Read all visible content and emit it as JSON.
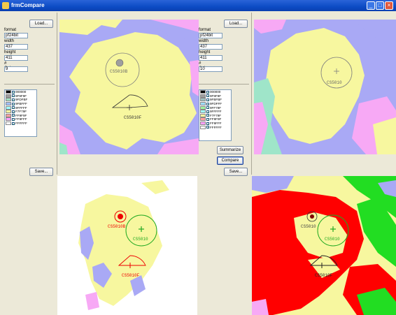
{
  "window": {
    "title": "frmCompare"
  },
  "left_panel": {
    "load_label": "Load...",
    "format_label": "format",
    "format_value": "pf24bit",
    "width_label": "width",
    "width_value": "437",
    "height_label": "height",
    "height_value": "411",
    "colours_label": "# Colours",
    "colours_value": "9",
    "save_label": "Save...",
    "legend": [
      {
        "hex": "000000",
        "color": "#000000"
      },
      {
        "hex": "9F9F9F",
        "color": "#9F9F9F"
      },
      {
        "hex": "9FDFBF",
        "color": "#9FDFBF"
      },
      {
        "hex": "9FBFFF",
        "color": "#9FBFFF"
      },
      {
        "hex": "9FFFFF",
        "color": "#9FFFFF"
      },
      {
        "hex": "F7F79F",
        "color": "#F7F79F"
      },
      {
        "hex": "FF9F9F",
        "color": "#FF9F9F"
      },
      {
        "hex": "FF9FFF",
        "color": "#FF9FFF"
      },
      {
        "hex": "FFFFFF",
        "color": "#FFFFFF"
      }
    ]
  },
  "right_panel": {
    "load_label": "Load...",
    "format_label": "format",
    "format_value": "pf24bit",
    "width_label": "width",
    "width_value": "437",
    "height_label": "height",
    "height_value": "411",
    "colours_label": "# Colours",
    "colours_value": "10",
    "summarize_label": "Summarize",
    "compare_label": "Compare",
    "save_label": "Save...",
    "legend": [
      {
        "hex": "000000",
        "color": "#000000"
      },
      {
        "hex": "9F9F9F",
        "color": "#9F9F9F"
      },
      {
        "hex": "9FBFBF",
        "color": "#9FBFBF"
      },
      {
        "hex": "9FDFFF",
        "color": "#9FDFFF"
      },
      {
        "hex": "9FF79F",
        "color": "#9FF79F"
      },
      {
        "hex": "9FFFFF",
        "color": "#9FFFFF"
      },
      {
        "hex": "F7F79F",
        "color": "#F7F79F"
      },
      {
        "hex": "FF9F9F",
        "color": "#FF9F9F"
      },
      {
        "hex": "FF9FFF",
        "color": "#FF9FFF"
      },
      {
        "hex": "FFFFFF",
        "color": "#FFFFFF"
      }
    ]
  },
  "maps": {
    "top_left": {
      "labels": [
        "CS5010B",
        "CS5010F"
      ]
    },
    "top_right": {
      "labels": [
        "CS5010"
      ]
    },
    "bottom_left": {
      "labels": [
        "CS5010B",
        "CS5010",
        "CS5010F"
      ]
    },
    "bottom_right": {
      "labels": [
        "CS5010",
        "CS5010",
        "CS5010F"
      ]
    }
  },
  "colors": {
    "yellow": "#F7F79F",
    "lavender": "#A9A9F5",
    "pink": "#F7A9F5",
    "mint": "#9FE5C9",
    "red": "#FF0000",
    "green": "#22DD22",
    "titlebar": "#0C4CC5"
  }
}
